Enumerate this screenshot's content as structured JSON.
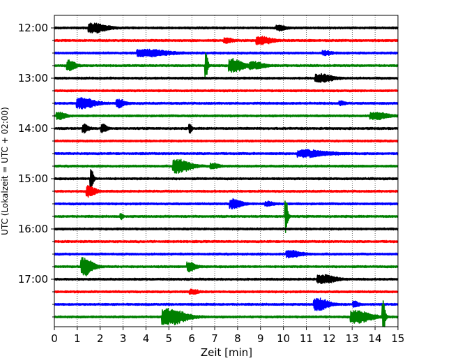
{
  "chart_data": {
    "type": "line",
    "title": "",
    "xlabel": "Zeit  [min]",
    "ylabel": "UTC (Lokalzeit = UTC + 02:00)",
    "xlim": [
      0,
      15
    ],
    "x_ticks": [
      0,
      1,
      2,
      3,
      4,
      5,
      6,
      7,
      8,
      9,
      10,
      11,
      12,
      13,
      14,
      15
    ],
    "x_tick_labels": [
      "0",
      "1",
      "2",
      "3",
      "4",
      "5",
      "6",
      "7",
      "8",
      "9",
      "10",
      "11",
      "12",
      "13",
      "14",
      "15"
    ],
    "y_tick_labels": [
      "12:00",
      "13:00",
      "14:00",
      "15:00",
      "16:00",
      "17:00"
    ],
    "grid": "vertical dotted",
    "trace_colors": [
      "#000000",
      "#ff0000",
      "#0000ff",
      "#008000"
    ],
    "trace_start_times": [
      "12:00",
      "12:15",
      "12:30",
      "12:45",
      "13:00",
      "13:15",
      "13:30",
      "13:45",
      "14:00",
      "14:15",
      "14:30",
      "14:45",
      "15:00",
      "15:15",
      "15:30",
      "15:45",
      "16:00",
      "16:15",
      "16:30",
      "16:45",
      "17:00",
      "17:15",
      "17:30",
      "17:45"
    ],
    "events": [
      {
        "trace": 0,
        "t": 1.7,
        "amp": 0.35,
        "dur": 0.6
      },
      {
        "trace": 0,
        "t": 9.8,
        "amp": 0.18,
        "dur": 0.3
      },
      {
        "trace": 1,
        "t": 9.0,
        "amp": 0.3,
        "dur": 0.5
      },
      {
        "trace": 1,
        "t": 7.5,
        "amp": 0.15,
        "dur": 0.3
      },
      {
        "trace": 2,
        "t": 4.0,
        "amp": 0.25,
        "dur": 1.0
      },
      {
        "trace": 2,
        "t": 11.8,
        "amp": 0.15,
        "dur": 0.3
      },
      {
        "trace": 3,
        "t": 0.65,
        "amp": 0.4,
        "dur": 0.3
      },
      {
        "trace": 3,
        "t": 6.6,
        "amp": 1.1,
        "dur": 0.1
      },
      {
        "trace": 3,
        "t": 7.8,
        "amp": 0.5,
        "dur": 0.5
      },
      {
        "trace": 3,
        "t": 8.7,
        "amp": 0.25,
        "dur": 0.5
      },
      {
        "trace": 4,
        "t": 11.6,
        "amp": 0.28,
        "dur": 0.6
      },
      {
        "trace": 6,
        "t": 1.2,
        "amp": 0.4,
        "dur": 0.6
      },
      {
        "trace": 6,
        "t": 2.8,
        "amp": 0.3,
        "dur": 0.3
      },
      {
        "trace": 6,
        "t": 12.5,
        "amp": 0.15,
        "dur": 0.2
      },
      {
        "trace": 7,
        "t": 0.2,
        "amp": 0.25,
        "dur": 0.3
      },
      {
        "trace": 7,
        "t": 14.0,
        "amp": 0.25,
        "dur": 0.6
      },
      {
        "trace": 8,
        "t": 1.3,
        "amp": 0.3,
        "dur": 0.2
      },
      {
        "trace": 8,
        "t": 2.1,
        "amp": 0.3,
        "dur": 0.2
      },
      {
        "trace": 8,
        "t": 5.9,
        "amp": 0.35,
        "dur": 0.1
      },
      {
        "trace": 10,
        "t": 11.0,
        "amp": 0.25,
        "dur": 1.0
      },
      {
        "trace": 11,
        "t": 5.4,
        "amp": 0.5,
        "dur": 0.6
      },
      {
        "trace": 11,
        "t": 6.9,
        "amp": 0.2,
        "dur": 0.3
      },
      {
        "trace": 12,
        "t": 1.6,
        "amp": 1.0,
        "dur": 0.1
      },
      {
        "trace": 13,
        "t": 1.5,
        "amp": 0.4,
        "dur": 0.3
      },
      {
        "trace": 14,
        "t": 7.8,
        "amp": 0.35,
        "dur": 0.4
      },
      {
        "trace": 14,
        "t": 9.3,
        "amp": 0.15,
        "dur": 0.3
      },
      {
        "trace": 15,
        "t": 10.1,
        "amp": 1.4,
        "dur": 0.1
      },
      {
        "trace": 15,
        "t": 2.9,
        "amp": 0.2,
        "dur": 0.1
      },
      {
        "trace": 18,
        "t": 10.3,
        "amp": 0.25,
        "dur": 0.5
      },
      {
        "trace": 19,
        "t": 1.3,
        "amp": 0.7,
        "dur": 0.4
      },
      {
        "trace": 19,
        "t": 5.9,
        "amp": 0.35,
        "dur": 0.3
      },
      {
        "trace": 20,
        "t": 11.7,
        "amp": 0.3,
        "dur": 0.6
      },
      {
        "trace": 21,
        "t": 6.0,
        "amp": 0.15,
        "dur": 0.3
      },
      {
        "trace": 22,
        "t": 11.5,
        "amp": 0.45,
        "dur": 0.5
      },
      {
        "trace": 22,
        "t": 13.1,
        "amp": 0.2,
        "dur": 0.2
      },
      {
        "trace": 23,
        "t": 5.0,
        "amp": 0.6,
        "dur": 0.8
      },
      {
        "trace": 23,
        "t": 13.2,
        "amp": 0.45,
        "dur": 0.7
      },
      {
        "trace": 23,
        "t": 14.35,
        "amp": 1.2,
        "dur": 0.1
      }
    ]
  }
}
